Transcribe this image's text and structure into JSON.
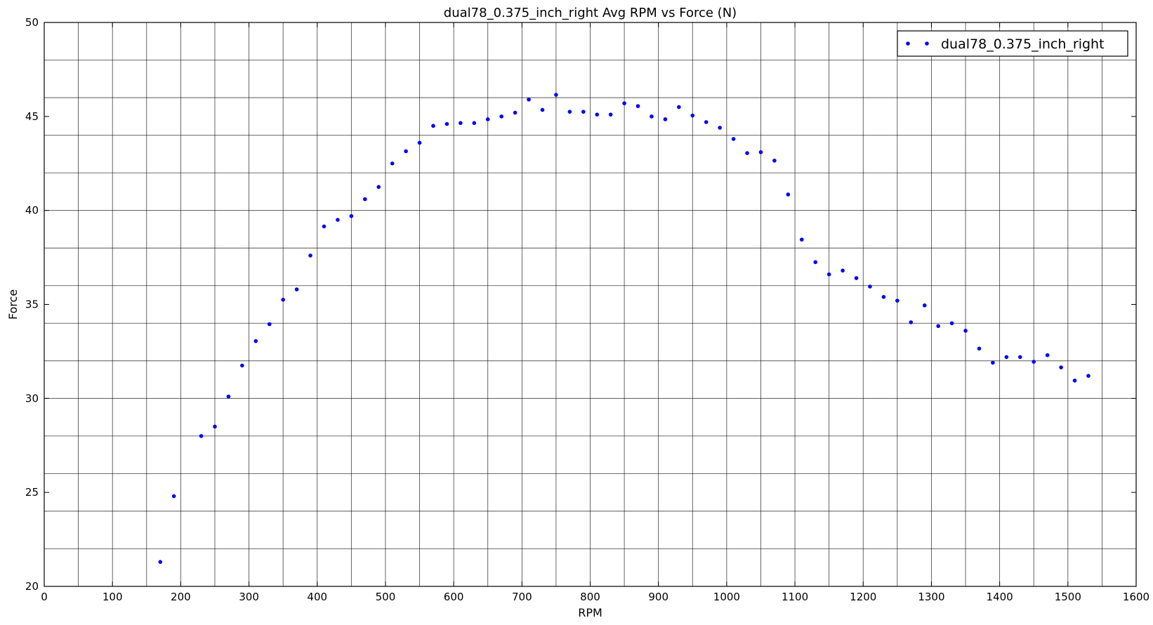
{
  "chart_data": {
    "type": "scatter",
    "title": "dual78_0.375_inch_right Avg RPM vs Force (N)",
    "xlabel": "RPM",
    "ylabel": "Force",
    "xlim": [
      0,
      1600
    ],
    "ylim": [
      20,
      50
    ],
    "xticks": [
      0,
      100,
      200,
      300,
      400,
      500,
      600,
      700,
      800,
      900,
      1000,
      1100,
      1200,
      1300,
      1400,
      1500,
      1600
    ],
    "yticks": [
      20,
      25,
      30,
      35,
      40,
      45,
      50
    ],
    "grid": true,
    "grid_x_step": 50,
    "grid_y_step": 2,
    "legend_position": "top-right",
    "series": [
      {
        "name": "dual78_0.375_inch_right",
        "color": "#0000ff",
        "marker": "dot",
        "x": [
          170,
          190,
          230,
          250,
          270,
          290,
          310,
          330,
          350,
          370,
          390,
          410,
          430,
          450,
          470,
          490,
          510,
          530,
          550,
          570,
          590,
          610,
          630,
          650,
          670,
          690,
          710,
          730,
          750,
          770,
          790,
          810,
          830,
          850,
          870,
          890,
          910,
          930,
          950,
          970,
          990,
          1010,
          1030,
          1050,
          1070,
          1090,
          1110,
          1130,
          1150,
          1170,
          1190,
          1210,
          1230,
          1250,
          1270,
          1290,
          1310,
          1330,
          1350,
          1370,
          1390,
          1410,
          1430,
          1450,
          1470,
          1490,
          1510,
          1530
        ],
        "y": [
          21.3,
          24.8,
          28.0,
          28.5,
          30.1,
          31.75,
          33.05,
          33.95,
          35.25,
          35.8,
          37.6,
          39.15,
          39.5,
          39.7,
          40.6,
          41.25,
          42.5,
          43.15,
          43.6,
          44.5,
          44.6,
          44.65,
          44.65,
          44.85,
          45.0,
          45.2,
          45.9,
          45.35,
          46.15,
          45.25,
          45.25,
          45.1,
          45.1,
          45.7,
          45.55,
          45.0,
          44.85,
          45.5,
          45.05,
          44.7,
          44.4,
          43.8,
          43.05,
          43.1,
          42.65,
          40.85,
          38.45,
          37.25,
          36.6,
          36.8,
          36.4,
          35.95,
          35.4,
          35.2,
          34.05,
          34.95,
          33.85,
          34.0,
          33.6,
          32.65,
          31.9,
          32.2,
          32.2,
          31.95,
          32.3,
          31.65,
          30.95,
          31.2
        ]
      }
    ]
  }
}
